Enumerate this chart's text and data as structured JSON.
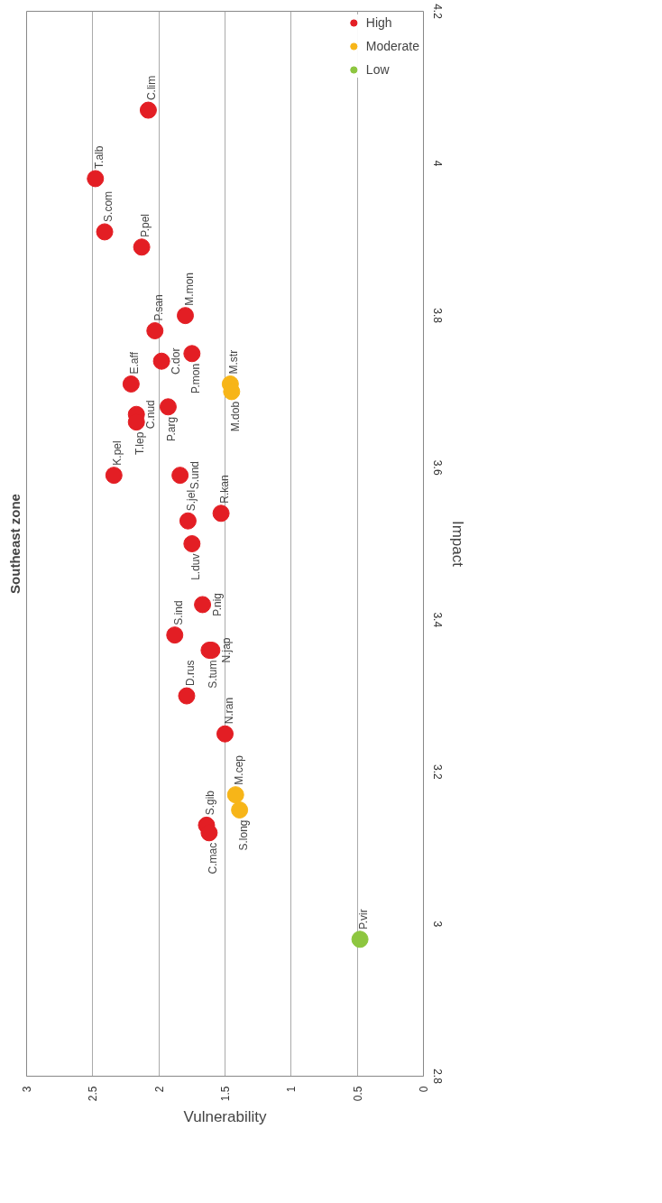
{
  "chart_data": {
    "type": "scatter",
    "title": "Southeast zone",
    "xlabel": "Vulnerability",
    "ylabel": "Impact",
    "xlim": [
      3,
      0
    ],
    "xticks": [
      3,
      2.5,
      2,
      1.5,
      1,
      0.5,
      0
    ],
    "ylim": [
      2.8,
      4.2
    ],
    "yticks": [
      2.8,
      3,
      3.2,
      3.4,
      3.6,
      3.8,
      4,
      4.2
    ],
    "grid": "x",
    "legend": "top right",
    "marker": "circle",
    "series": [
      {
        "name": "High",
        "color": "#e31e24",
        "x": [
          2.08,
          2.48,
          2.41,
          2.13,
          1.8,
          2.03,
          1.75,
          1.98,
          2.21,
          1.93,
          2.17,
          2.17,
          2.34,
          1.84,
          1.53,
          1.78,
          1.75,
          1.67,
          1.88,
          1.62,
          1.6,
          1.79,
          1.5,
          1.64,
          1.62
        ],
        "values": [
          4.07,
          3.98,
          3.91,
          3.89,
          3.8,
          3.78,
          3.75,
          3.74,
          3.71,
          3.68,
          3.67,
          3.66,
          3.59,
          3.59,
          3.54,
          3.53,
          3.5,
          3.42,
          3.38,
          3.36,
          3.36,
          3.3,
          3.25,
          3.13,
          3.12
        ],
        "value_labels": [
          "C.lim",
          "T.alb",
          "S.com",
          "P.pel",
          "M.mon",
          "P.san",
          "P.mon",
          "C.dor",
          "E.aff",
          "P.arg",
          "C.nud",
          "T.lep",
          "K.pel",
          "S.und",
          "R.kan",
          "S.jel",
          "L.duv",
          "P.nig",
          "S.ind",
          "S.tum",
          "N.jap",
          "D.rus",
          "N.ran",
          "S.gib",
          "C.mac"
        ]
      },
      {
        "name": "Moderate",
        "color": "#f7b518",
        "x": [
          1.46,
          1.45,
          1.42,
          1.39
        ],
        "values": [
          3.71,
          3.7,
          3.17,
          3.15
        ],
        "value_labels": [
          "M.str",
          "M.dob",
          "M.cep",
          "S.long"
        ]
      },
      {
        "name": "Low",
        "color": "#8dc63f",
        "x": [
          0.48
        ],
        "values": [
          2.98
        ],
        "value_labels": [
          "P.vir"
        ]
      }
    ]
  }
}
